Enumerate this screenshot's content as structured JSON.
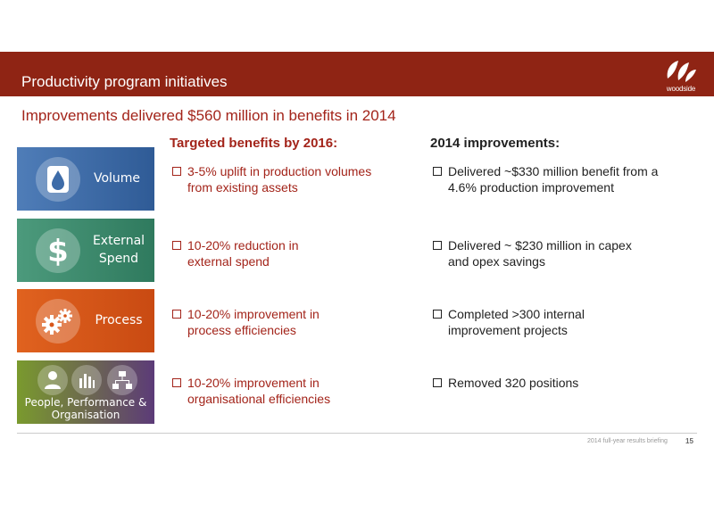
{
  "header": {
    "title": "Productivity program initiatives",
    "logo_text": "woodside"
  },
  "subtitle": "Improvements delivered $560 million in benefits in 2014",
  "columns": {
    "targeted_heading": "Targeted benefits by 2016:",
    "improvements_heading": "2014 improvements:"
  },
  "rows": [
    {
      "tile_label": "Volume",
      "tile_icon": "oil-drop-barrel-icon",
      "target": "3-5% uplift in production volumes from existing assets",
      "improvement": "Delivered ~$330 million benefit from a 4.6% production improvement"
    },
    {
      "tile_label": "External Spend",
      "tile_icon": "dollar-icon",
      "target": "10-20% reduction in external spend",
      "improvement": "Delivered ~ $230 million in capex and opex savings"
    },
    {
      "tile_label": "Process",
      "tile_icon": "gears-icon",
      "target": "10-20% improvement in process efficiencies",
      "improvement": "Completed >300 internal improvement projects"
    },
    {
      "tile_label": "People, Performance & Organisation",
      "tile_icon": "people-chart-org-icons",
      "target": "10-20% improvement in organisational efficiencies",
      "improvement": "Removed 320 positions"
    }
  ],
  "footer": {
    "text": "2014 full-year results briefing",
    "page": "15"
  },
  "colors": {
    "banner": "#8f2414",
    "accent_red": "#a3241a",
    "volume": "#3e6ca8",
    "external_spend": "#3f8b6f",
    "process": "#d8561a",
    "people_start": "#7a9a2e",
    "people_end": "#5c3b78"
  }
}
